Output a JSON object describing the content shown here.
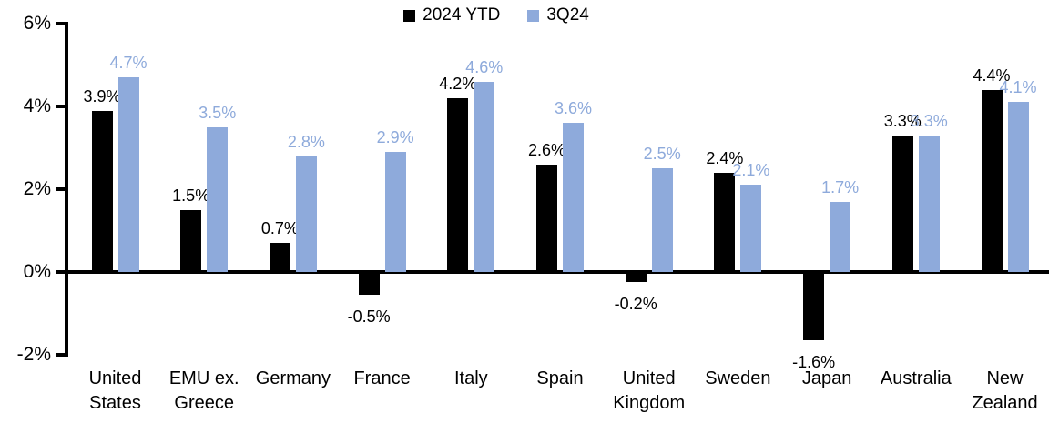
{
  "chart_data": {
    "type": "bar",
    "title": "",
    "xlabel": "",
    "ylabel": "",
    "categories": [
      "United States",
      "EMU ex. Greece",
      "Germany",
      "France",
      "Italy",
      "Spain",
      "United Kingdom",
      "Sweden",
      "Japan",
      "Australia",
      "New Zealand"
    ],
    "series": [
      {
        "name": "2024 YTD",
        "color": "#000000",
        "values": [
          3.9,
          1.5,
          0.7,
          -0.5,
          4.2,
          2.6,
          -0.2,
          2.4,
          -1.6,
          3.3,
          4.4
        ],
        "labels": [
          "3.9%",
          "1.5%",
          "0.7%",
          "-0.5%",
          "4.2%",
          "2.6%",
          "-0.2%",
          "2.4%",
          "-1.6%",
          "3.3%",
          "4.4%"
        ]
      },
      {
        "name": "3Q24",
        "color": "#8EAADB",
        "values": [
          4.7,
          3.5,
          2.8,
          2.9,
          4.6,
          3.6,
          2.5,
          2.1,
          1.7,
          3.3,
          4.1
        ],
        "labels": [
          "4.7%",
          "3.5%",
          "2.8%",
          "2.9%",
          "4.6%",
          "3.6%",
          "2.5%",
          "2.1%",
          "1.7%",
          "3.3%",
          "4.1%"
        ]
      }
    ],
    "y_axis": {
      "ticks": [
        "6%",
        "4%",
        "2%",
        "0%",
        "-2%"
      ],
      "tick_values": [
        6,
        4,
        2,
        0,
        -2
      ],
      "min": -2,
      "max": 6
    },
    "legend": {
      "position": "top-center"
    },
    "grid": false,
    "background": "#FFFFFF"
  }
}
